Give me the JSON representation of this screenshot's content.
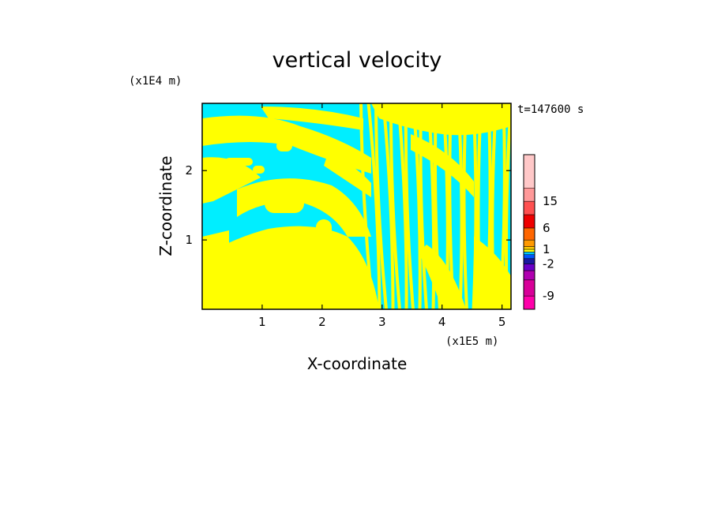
{
  "chart_data": {
    "type": "heatmap",
    "title": "vertical velocity",
    "xlabel": "X-coordinate",
    "ylabel": "Z-coordinate",
    "x_scale_label": "(x1E5 m)",
    "y_scale_label": "(x1E4 m)",
    "time_label": "t=147600 s",
    "xlim": [
      0,
      5.15
    ],
    "ylim": [
      0,
      2.97
    ],
    "x_ticks": [
      1,
      2,
      3,
      4,
      5
    ],
    "y_ticks": [
      1,
      2
    ],
    "x_tick_labels": [
      "1",
      "2",
      "3",
      "4",
      "5"
    ],
    "y_tick_labels": [
      "1",
      "2"
    ],
    "field_colors": {
      "positive": "#ffff00",
      "negative": "#00eeff"
    },
    "colorbar": {
      "levels_bottom_to_top": [
        -12,
        -9,
        -6,
        -4,
        -2,
        -1,
        0,
        0.5,
        1,
        2,
        4,
        6,
        10,
        15,
        20,
        30
      ],
      "colors_bottom_to_top": [
        "#ff00aa",
        "#d80098",
        "#b000b0",
        "#6a00c8",
        "#1a1aa0",
        "#0055ff",
        "#00c8ff",
        "#ffff00",
        "#ffcc00",
        "#ff9900",
        "#ff6600",
        "#ee0000",
        "#ff5050",
        "#ff9999",
        "#ffc8c8"
      ],
      "tick_labels": [
        {
          "label": "15",
          "value": 15
        },
        {
          "label": "6",
          "value": 6
        },
        {
          "label": "1",
          "value": 1
        },
        {
          "label": "-2",
          "value": -2
        },
        {
          "label": "-9",
          "value": -9
        }
      ]
    }
  }
}
